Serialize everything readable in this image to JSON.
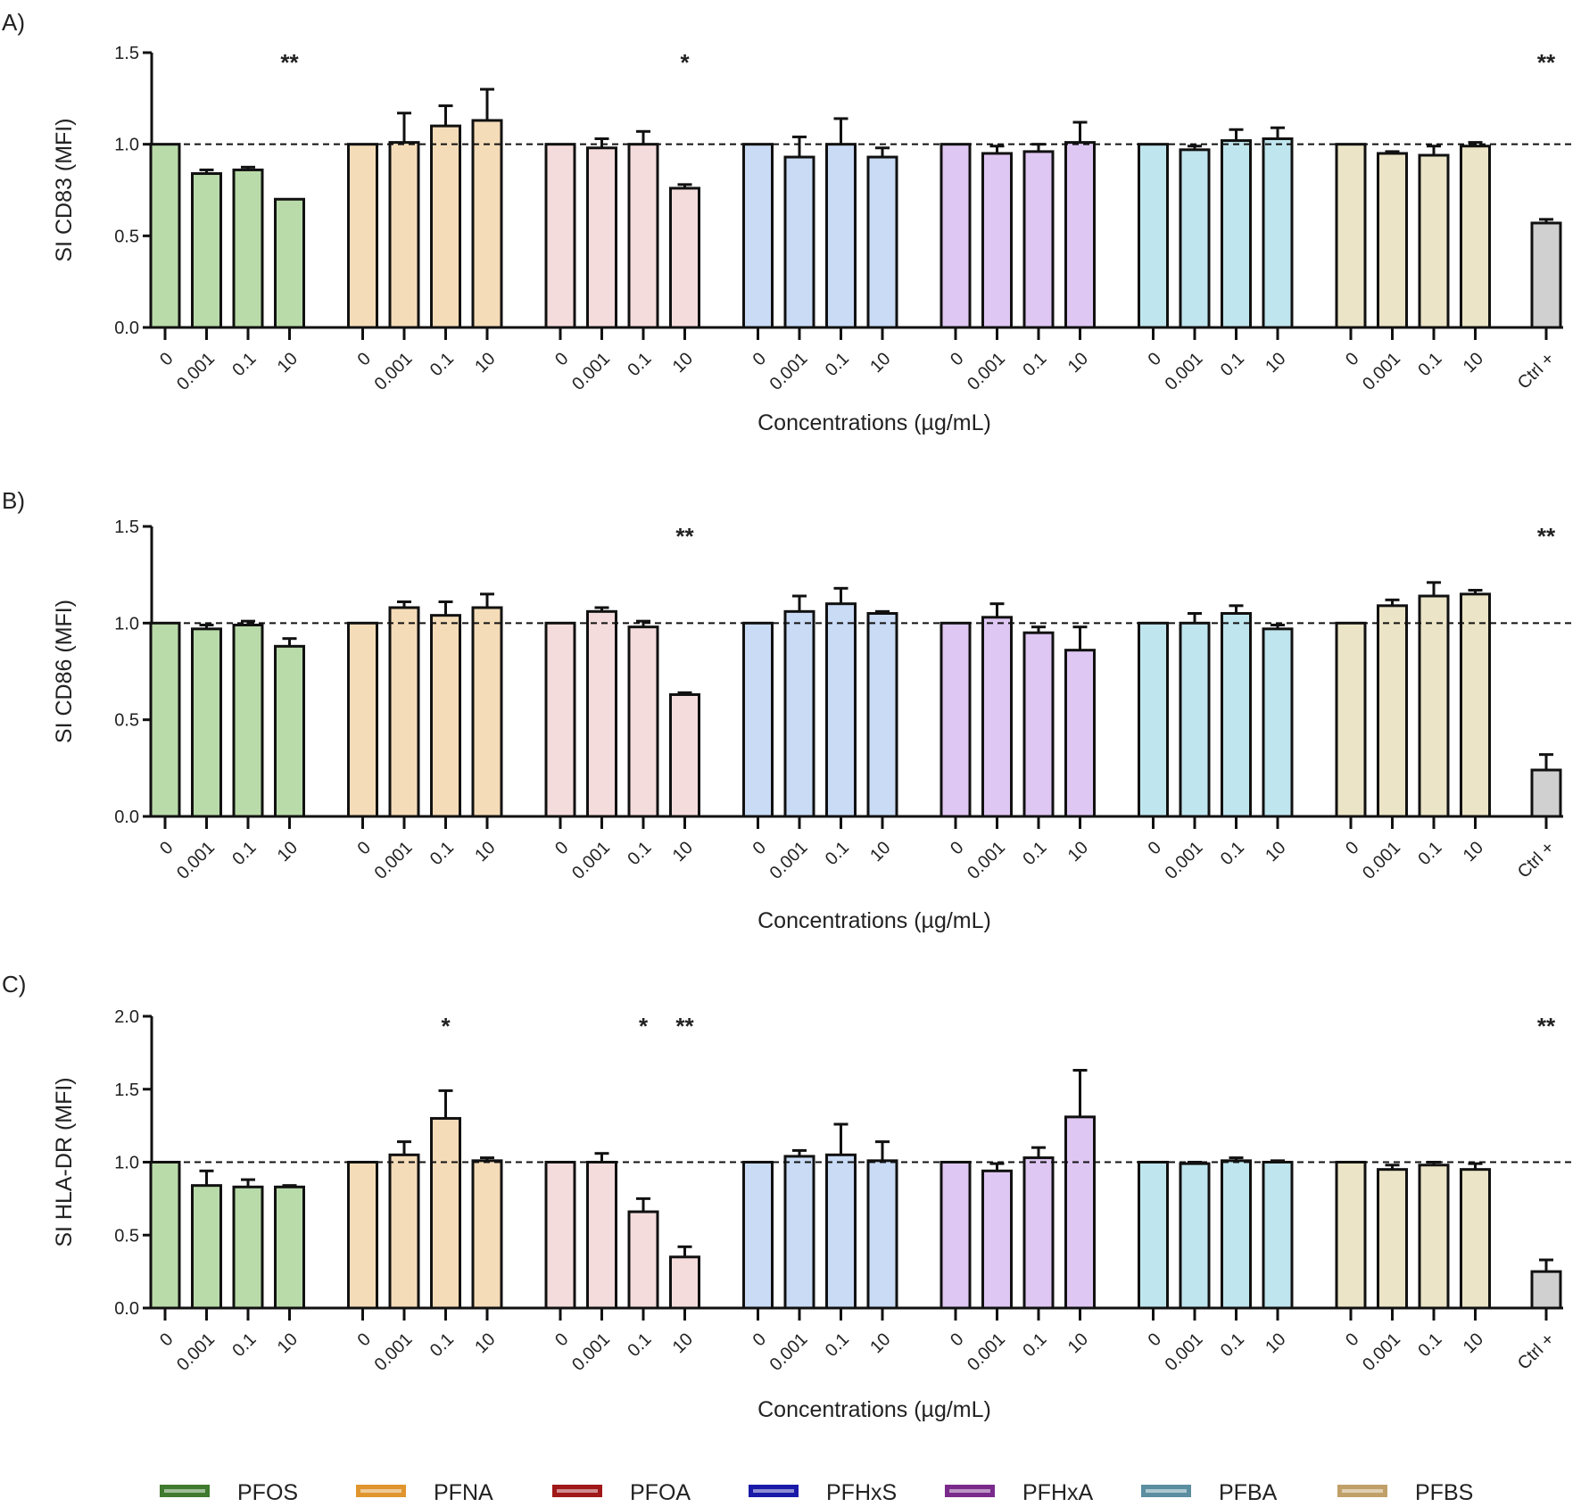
{
  "xlabel": "Concentrations (µg/mL)",
  "legend": [
    {
      "name": "PFOS",
      "color": "#3f7a2e"
    },
    {
      "name": "PFNA",
      "color": "#e0952e"
    },
    {
      "name": "PFOA",
      "color": "#a01818"
    },
    {
      "name": "PFHxS",
      "color": "#1a1aa8"
    },
    {
      "name": "PFHxA",
      "color": "#7a2a8a"
    },
    {
      "name": "PFBA",
      "color": "#5a8ea0"
    },
    {
      "name": "PFBS",
      "color": "#c0a068"
    }
  ],
  "fill_colors": [
    "#b9dba9",
    "#f5dcb8",
    "#f5dcdc",
    "#c9dbf5",
    "#dfc7f3",
    "#bfe6ee",
    "#ebe4c6"
  ],
  "ctrl_color": "#d0d0d0",
  "concentrations": [
    "0",
    "0.001",
    "0.1",
    "10"
  ],
  "ctrl_label": "Ctrl +",
  "chart_data": [
    {
      "type": "bar",
      "panel": "A)",
      "ylabel": "SI CD83 (MFI)",
      "xlabel": "Concentrations (µg/mL)",
      "ylim": [
        0,
        1.5
      ],
      "yticks": [
        "0.0",
        "0.5",
        "1.0",
        "1.5"
      ],
      "reference_line": 1.0,
      "legend": "bottom",
      "series": [
        {
          "name": "PFOS",
          "values": [
            1.0,
            0.84,
            0.86,
            0.7
          ],
          "error_upper": [
            1.0,
            0.86,
            0.875,
            0.7
          ],
          "stars": [
            "",
            "",
            "",
            "**"
          ]
        },
        {
          "name": "PFNA",
          "values": [
            1.0,
            1.01,
            1.1,
            1.13
          ],
          "error_upper": [
            1.0,
            1.17,
            1.21,
            1.3
          ],
          "stars": [
            "",
            "",
            "",
            ""
          ]
        },
        {
          "name": "PFOA",
          "values": [
            1.0,
            0.98,
            1.0,
            0.76
          ],
          "error_upper": [
            1.0,
            1.03,
            1.07,
            0.78
          ],
          "stars": [
            "",
            "",
            "",
            "*"
          ]
        },
        {
          "name": "PFHxS",
          "values": [
            1.0,
            0.93,
            1.0,
            0.93
          ],
          "error_upper": [
            1.0,
            1.04,
            1.14,
            0.98
          ],
          "stars": [
            "",
            "",
            "",
            ""
          ]
        },
        {
          "name": "PFHxA",
          "values": [
            1.0,
            0.95,
            0.96,
            1.01
          ],
          "error_upper": [
            1.0,
            0.99,
            1.0,
            1.12
          ],
          "stars": [
            "",
            "",
            "",
            ""
          ]
        },
        {
          "name": "PFBA",
          "values": [
            1.0,
            0.97,
            1.02,
            1.03
          ],
          "error_upper": [
            1.0,
            0.99,
            1.08,
            1.09
          ],
          "stars": [
            "",
            "",
            "",
            ""
          ]
        },
        {
          "name": "PFBS",
          "values": [
            1.0,
            0.95,
            0.94,
            0.99
          ],
          "error_upper": [
            1.0,
            0.96,
            0.99,
            1.01
          ],
          "stars": [
            "",
            "",
            "",
            ""
          ]
        }
      ],
      "ctrl": {
        "value": 0.57,
        "error_upper": 0.59,
        "stars": "**"
      }
    },
    {
      "type": "bar",
      "panel": "B)",
      "ylabel": "SI CD86 (MFI)",
      "xlabel": "Concentrations (µg/mL)",
      "ylim": [
        0,
        1.5
      ],
      "yticks": [
        "0.0",
        "0.5",
        "1.0",
        "1.5"
      ],
      "reference_line": 1.0,
      "legend": "bottom",
      "series": [
        {
          "name": "PFOS",
          "values": [
            1.0,
            0.97,
            0.99,
            0.88
          ],
          "error_upper": [
            1.0,
            0.99,
            1.01,
            0.92
          ],
          "stars": [
            "",
            "",
            "",
            ""
          ]
        },
        {
          "name": "PFNA",
          "values": [
            1.0,
            1.08,
            1.04,
            1.08
          ],
          "error_upper": [
            1.0,
            1.11,
            1.11,
            1.15
          ],
          "stars": [
            "",
            "",
            "",
            ""
          ]
        },
        {
          "name": "PFOA",
          "values": [
            1.0,
            1.06,
            0.98,
            0.63
          ],
          "error_upper": [
            1.0,
            1.08,
            1.01,
            0.64
          ],
          "stars": [
            "",
            "",
            "",
            "**"
          ]
        },
        {
          "name": "PFHxS",
          "values": [
            1.0,
            1.06,
            1.1,
            1.05
          ],
          "error_upper": [
            1.0,
            1.14,
            1.18,
            1.06
          ],
          "stars": [
            "",
            "",
            "",
            ""
          ]
        },
        {
          "name": "PFHxA",
          "values": [
            1.0,
            1.03,
            0.95,
            0.86
          ],
          "error_upper": [
            1.0,
            1.1,
            0.98,
            0.98
          ],
          "stars": [
            "",
            "",
            "",
            ""
          ]
        },
        {
          "name": "PFBA",
          "values": [
            1.0,
            1.0,
            1.05,
            0.97
          ],
          "error_upper": [
            1.0,
            1.05,
            1.09,
            0.99
          ],
          "stars": [
            "",
            "",
            "",
            ""
          ]
        },
        {
          "name": "PFBS",
          "values": [
            1.0,
            1.09,
            1.14,
            1.15
          ],
          "error_upper": [
            1.0,
            1.12,
            1.21,
            1.17
          ],
          "stars": [
            "",
            "",
            "",
            ""
          ]
        }
      ],
      "ctrl": {
        "value": 0.24,
        "error_upper": 0.32,
        "stars": "**"
      }
    },
    {
      "type": "bar",
      "panel": "C)",
      "ylabel": "SI HLA-DR (MFI)",
      "xlabel": "Concentrations (µg/mL)",
      "ylim": [
        0,
        2.0
      ],
      "yticks": [
        "0.0",
        "0.5",
        "1.0",
        "1.5",
        "2.0"
      ],
      "reference_line": 1.0,
      "legend": "bottom",
      "series": [
        {
          "name": "PFOS",
          "values": [
            1.0,
            0.84,
            0.83,
            0.83
          ],
          "error_upper": [
            1.0,
            0.94,
            0.88,
            0.84
          ],
          "stars": [
            "",
            "",
            "",
            ""
          ]
        },
        {
          "name": "PFNA",
          "values": [
            1.0,
            1.05,
            1.3,
            1.01
          ],
          "error_upper": [
            1.0,
            1.14,
            1.49,
            1.03
          ],
          "stars": [
            "",
            "",
            "*",
            ""
          ]
        },
        {
          "name": "PFOA",
          "values": [
            1.0,
            1.0,
            0.66,
            0.35
          ],
          "error_upper": [
            1.0,
            1.06,
            0.75,
            0.42
          ],
          "stars": [
            "",
            "",
            "*",
            "**"
          ]
        },
        {
          "name": "PFHxS",
          "values": [
            1.0,
            1.04,
            1.05,
            1.01
          ],
          "error_upper": [
            1.0,
            1.08,
            1.26,
            1.14
          ],
          "stars": [
            "",
            "",
            "",
            ""
          ]
        },
        {
          "name": "PFHxA",
          "values": [
            1.0,
            0.94,
            1.03,
            1.31
          ],
          "error_upper": [
            1.0,
            0.99,
            1.1,
            1.63
          ],
          "stars": [
            "",
            "",
            "",
            ""
          ]
        },
        {
          "name": "PFBA",
          "values": [
            1.0,
            0.99,
            1.01,
            1.0
          ],
          "error_upper": [
            1.0,
            1.0,
            1.03,
            1.01
          ],
          "stars": [
            "",
            "",
            "",
            ""
          ]
        },
        {
          "name": "PFBS",
          "values": [
            1.0,
            0.95,
            0.98,
            0.95
          ],
          "error_upper": [
            1.0,
            0.98,
            1.0,
            0.99
          ],
          "stars": [
            "",
            "",
            "",
            ""
          ]
        }
      ],
      "ctrl": {
        "value": 0.25,
        "error_upper": 0.33,
        "stars": "**"
      }
    }
  ]
}
